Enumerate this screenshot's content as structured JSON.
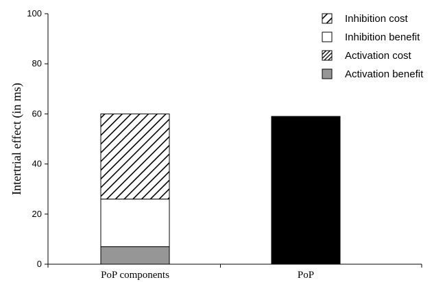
{
  "chart_data": {
    "type": "bar",
    "stacked": true,
    "ylabel": "Intertrial  effect  (in ms)",
    "xlabel": "",
    "ylim": [
      0,
      100
    ],
    "yticks": [
      0,
      20,
      40,
      60,
      80,
      100
    ],
    "categories": [
      "PoP components",
      "PoP"
    ],
    "series": [
      {
        "name": "Activation benefit",
        "values": [
          7,
          0
        ],
        "fill": "#969696",
        "pattern": "none"
      },
      {
        "name": "Activation cost",
        "values": [
          0,
          0
        ],
        "fill": "#ffffff",
        "pattern": "hatch-dense"
      },
      {
        "name": "Inhibition benefit",
        "values": [
          19,
          0
        ],
        "fill": "#ffffff",
        "pattern": "none"
      },
      {
        "name": "Inhibition cost",
        "values": [
          34,
          0
        ],
        "fill": "#ffffff",
        "pattern": "hatch"
      }
    ],
    "totals_series": {
      "category": "PoP",
      "value": 59,
      "fill": "#000000"
    },
    "legend": {
      "position": "top-right",
      "order": [
        "Inhibition cost",
        "Inhibition benefit",
        "Activation cost",
        "Activation benefit"
      ]
    },
    "grid": false
  }
}
